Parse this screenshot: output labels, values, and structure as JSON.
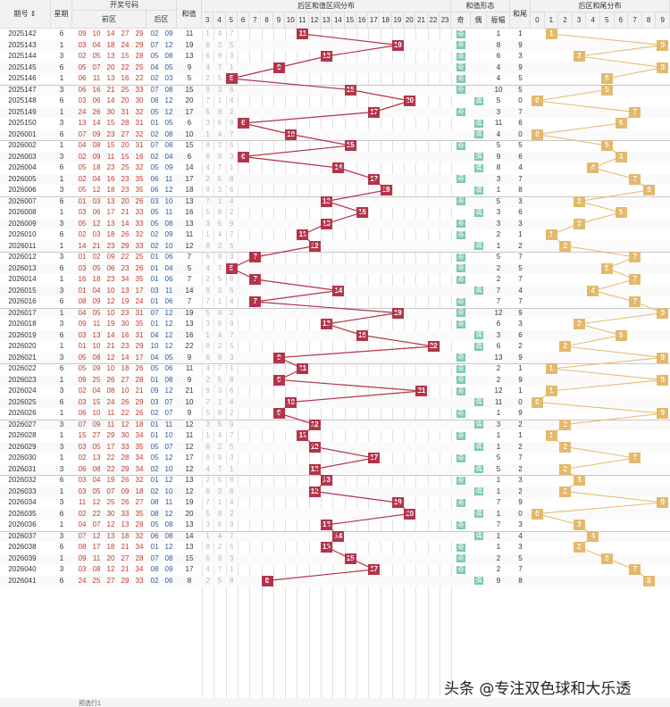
{
  "headers": {
    "period": "期号",
    "weekday": "星期",
    "draw": "开奖号码",
    "front": "前区",
    "back": "后区",
    "sum": "和值",
    "sum_dist": "后区和值区间分布",
    "sum_shape": "和值形态",
    "odd": "奇",
    "even": "偶",
    "amp": "振幅",
    "tail": "和尾",
    "tail_dist": "后区和尾分布",
    "sort_icon": "sort-arrows-icon"
  },
  "sum_cols": [
    "3",
    "4",
    "5",
    "6",
    "7",
    "8",
    "9",
    "10",
    "11",
    "12",
    "13",
    "14",
    "15",
    "16",
    "17",
    "18",
    "19",
    "20",
    "21",
    "22",
    "23"
  ],
  "tail_cols": [
    "0",
    "1",
    "2",
    "3",
    "4",
    "5",
    "6",
    "7",
    "8",
    "9"
  ],
  "rows": [
    {
      "p": "2025142",
      "w": "6",
      "f": [
        "09",
        "10",
        "14",
        "27",
        "29"
      ],
      "b": [
        "02",
        "09"
      ],
      "s": "11",
      "oe": "odd",
      "a": "1",
      "t": "1"
    },
    {
      "p": "2025143",
      "w": "1",
      "f": [
        "03",
        "04",
        "18",
        "24",
        "29"
      ],
      "b": [
        "07",
        "12"
      ],
      "s": "19",
      "oe": "odd",
      "a": "8",
      "t": "9"
    },
    {
      "p": "2025144",
      "w": "3",
      "f": [
        "02",
        "05",
        "13",
        "15",
        "28"
      ],
      "b": [
        "05",
        "08"
      ],
      "s": "13",
      "oe": "odd",
      "a": "6",
      "t": "3"
    },
    {
      "p": "2025145",
      "w": "6",
      "f": [
        "05",
        "07",
        "20",
        "22",
        "25"
      ],
      "b": [
        "04",
        "05"
      ],
      "s": "9",
      "oe": "odd",
      "a": "4",
      "t": "9"
    },
    {
      "p": "2025146",
      "w": "1",
      "f": [
        "06",
        "11",
        "13",
        "16",
        "22"
      ],
      "b": [
        "02",
        "03"
      ],
      "s": "5",
      "oe": "odd",
      "a": "4",
      "t": "5"
    },
    {
      "p": "2025147",
      "w": "3",
      "f": [
        "06",
        "16",
        "21",
        "25",
        "33"
      ],
      "b": [
        "07",
        "08"
      ],
      "s": "15",
      "oe": "odd",
      "a": "10",
      "t": "5"
    },
    {
      "p": "2025148",
      "w": "6",
      "f": [
        "03",
        "06",
        "14",
        "20",
        "30"
      ],
      "b": [
        "08",
        "12"
      ],
      "s": "20",
      "oe": "even",
      "a": "5",
      "t": "0"
    },
    {
      "p": "2025149",
      "w": "1",
      "f": [
        "24",
        "26",
        "30",
        "31",
        "32"
      ],
      "b": [
        "05",
        "12"
      ],
      "s": "17",
      "oe": "odd",
      "a": "3",
      "t": "7"
    },
    {
      "p": "2025150",
      "w": "3",
      "f": [
        "13",
        "14",
        "15",
        "28",
        "31"
      ],
      "b": [
        "01",
        "05"
      ],
      "s": "6",
      "oe": "even",
      "a": "11",
      "t": "6"
    },
    {
      "p": "2026001",
      "w": "6",
      "f": [
        "07",
        "09",
        "23",
        "27",
        "32"
      ],
      "b": [
        "02",
        "08"
      ],
      "s": "10",
      "oe": "even",
      "a": "4",
      "t": "0"
    },
    {
      "p": "2026002",
      "w": "1",
      "f": [
        "04",
        "08",
        "15",
        "20",
        "31"
      ],
      "b": [
        "07",
        "08"
      ],
      "s": "15",
      "oe": "odd",
      "a": "5",
      "t": "5"
    },
    {
      "p": "2026003",
      "w": "3",
      "f": [
        "02",
        "09",
        "11",
        "15",
        "16"
      ],
      "b": [
        "02",
        "04"
      ],
      "s": "6",
      "oe": "even",
      "a": "9",
      "t": "6"
    },
    {
      "p": "2026004",
      "w": "6",
      "f": [
        "05",
        "18",
        "23",
        "25",
        "32"
      ],
      "b": [
        "05",
        "09"
      ],
      "s": "14",
      "oe": "even",
      "a": "8",
      "t": "4"
    },
    {
      "p": "2026005",
      "w": "1",
      "f": [
        "02",
        "04",
        "16",
        "23",
        "35"
      ],
      "b": [
        "06",
        "11"
      ],
      "s": "17",
      "oe": "odd",
      "a": "3",
      "t": "7"
    },
    {
      "p": "2026006",
      "w": "3",
      "f": [
        "05",
        "12",
        "18",
        "23",
        "35"
      ],
      "b": [
        "06",
        "12"
      ],
      "s": "18",
      "oe": "even",
      "a": "1",
      "t": "8"
    },
    {
      "p": "2026007",
      "w": "6",
      "f": [
        "01",
        "03",
        "13",
        "20",
        "26"
      ],
      "b": [
        "03",
        "10"
      ],
      "s": "13",
      "oe": "odd",
      "a": "5",
      "t": "3"
    },
    {
      "p": "2026008",
      "w": "1",
      "f": [
        "03",
        "06",
        "17",
        "21",
        "33"
      ],
      "b": [
        "05",
        "11"
      ],
      "s": "16",
      "oe": "even",
      "a": "3",
      "t": "6"
    },
    {
      "p": "2026009",
      "w": "3",
      "f": [
        "05",
        "12",
        "13",
        "14",
        "33"
      ],
      "b": [
        "05",
        "08"
      ],
      "s": "13",
      "oe": "odd",
      "a": "3",
      "t": "3"
    },
    {
      "p": "2026010",
      "w": "6",
      "f": [
        "02",
        "03",
        "18",
        "26",
        "32"
      ],
      "b": [
        "02",
        "09"
      ],
      "s": "11",
      "oe": "odd",
      "a": "2",
      "t": "1"
    },
    {
      "p": "2026011",
      "w": "1",
      "f": [
        "14",
        "21",
        "23",
        "29",
        "33"
      ],
      "b": [
        "02",
        "10"
      ],
      "s": "12",
      "oe": "even",
      "a": "1",
      "t": "2"
    },
    {
      "p": "2026012",
      "w": "3",
      "f": [
        "01",
        "02",
        "09",
        "22",
        "25"
      ],
      "b": [
        "01",
        "06"
      ],
      "s": "7",
      "oe": "odd",
      "a": "5",
      "t": "7"
    },
    {
      "p": "2026013",
      "w": "6",
      "f": [
        "03",
        "05",
        "06",
        "23",
        "26"
      ],
      "b": [
        "01",
        "04"
      ],
      "s": "5",
      "oe": "odd",
      "a": "2",
      "t": "5"
    },
    {
      "p": "2026014",
      "w": "1",
      "f": [
        "16",
        "18",
        "23",
        "34",
        "35"
      ],
      "b": [
        "01",
        "06"
      ],
      "s": "7",
      "oe": "odd",
      "a": "2",
      "t": "7"
    },
    {
      "p": "2026015",
      "w": "3",
      "f": [
        "01",
        "04",
        "10",
        "13",
        "17"
      ],
      "b": [
        "03",
        "11"
      ],
      "s": "14",
      "oe": "even",
      "a": "7",
      "t": "4"
    },
    {
      "p": "2026016",
      "w": "6",
      "f": [
        "08",
        "09",
        "12",
        "19",
        "24"
      ],
      "b": [
        "01",
        "06"
      ],
      "s": "7",
      "oe": "odd",
      "a": "7",
      "t": "7"
    },
    {
      "p": "2026017",
      "w": "1",
      "f": [
        "04",
        "05",
        "10",
        "23",
        "31"
      ],
      "b": [
        "07",
        "12"
      ],
      "s": "19",
      "oe": "odd",
      "a": "12",
      "t": "9"
    },
    {
      "p": "2026018",
      "w": "3",
      "f": [
        "09",
        "11",
        "19",
        "30",
        "35"
      ],
      "b": [
        "01",
        "12"
      ],
      "s": "13",
      "oe": "odd",
      "a": "6",
      "t": "3"
    },
    {
      "p": "2026019",
      "w": "6",
      "f": [
        "03",
        "13",
        "14",
        "16",
        "31"
      ],
      "b": [
        "04",
        "12"
      ],
      "s": "16",
      "oe": "even",
      "a": "3",
      "t": "6"
    },
    {
      "p": "2026020",
      "w": "1",
      "f": [
        "01",
        "10",
        "21",
        "23",
        "29"
      ],
      "b": [
        "10",
        "12"
      ],
      "s": "22",
      "oe": "even",
      "a": "6",
      "t": "2"
    },
    {
      "p": "2026021",
      "w": "3",
      "f": [
        "05",
        "08",
        "12",
        "14",
        "17"
      ],
      "b": [
        "04",
        "05"
      ],
      "s": "9",
      "oe": "odd",
      "a": "13",
      "t": "9"
    },
    {
      "p": "2026022",
      "w": "6",
      "f": [
        "05",
        "09",
        "10",
        "18",
        "26"
      ],
      "b": [
        "05",
        "06"
      ],
      "s": "11",
      "oe": "odd",
      "a": "2",
      "t": "1"
    },
    {
      "p": "2026023",
      "w": "1",
      "f": [
        "09",
        "25",
        "26",
        "27",
        "28"
      ],
      "b": [
        "01",
        "08"
      ],
      "s": "9",
      "oe": "odd",
      "a": "2",
      "t": "9"
    },
    {
      "p": "2026024",
      "w": "3",
      "f": [
        "02",
        "04",
        "08",
        "10",
        "21"
      ],
      "b": [
        "09",
        "12"
      ],
      "s": "21",
      "oe": "odd",
      "a": "12",
      "t": "1"
    },
    {
      "p": "2026025",
      "w": "6",
      "f": [
        "03",
        "15",
        "24",
        "26",
        "29"
      ],
      "b": [
        "03",
        "07"
      ],
      "s": "10",
      "oe": "even",
      "a": "11",
      "t": "0"
    },
    {
      "p": "2026026",
      "w": "1",
      "f": [
        "06",
        "10",
        "11",
        "22",
        "26"
      ],
      "b": [
        "02",
        "07"
      ],
      "s": "9",
      "oe": "odd",
      "a": "1",
      "t": "9"
    },
    {
      "p": "2026027",
      "w": "3",
      "f": [
        "07",
        "09",
        "11",
        "12",
        "18"
      ],
      "b": [
        "01",
        "11"
      ],
      "s": "12",
      "oe": "even",
      "a": "3",
      "t": "2"
    },
    {
      "p": "2026028",
      "w": "1",
      "f": [
        "15",
        "27",
        "29",
        "30",
        "34"
      ],
      "b": [
        "01",
        "10"
      ],
      "s": "11",
      "oe": "odd",
      "a": "1",
      "t": "1"
    },
    {
      "p": "2026029",
      "w": "3",
      "f": [
        "03",
        "05",
        "17",
        "33",
        "35"
      ],
      "b": [
        "05",
        "07"
      ],
      "s": "12",
      "oe": "even",
      "a": "1",
      "t": "2"
    },
    {
      "p": "2026030",
      "w": "1",
      "f": [
        "02",
        "13",
        "22",
        "28",
        "34"
      ],
      "b": [
        "05",
        "12"
      ],
      "s": "17",
      "oe": "odd",
      "a": "5",
      "t": "7"
    },
    {
      "p": "2026031",
      "w": "3",
      "f": [
        "06",
        "08",
        "22",
        "29",
        "34"
      ],
      "b": [
        "02",
        "10"
      ],
      "s": "12",
      "oe": "even",
      "a": "5",
      "t": "2"
    },
    {
      "p": "2026032",
      "w": "6",
      "f": [
        "03",
        "04",
        "19",
        "26",
        "32"
      ],
      "b": [
        "01",
        "12"
      ],
      "s": "13",
      "oe": "odd",
      "a": "1",
      "t": "3"
    },
    {
      "p": "2026033",
      "w": "1",
      "f": [
        "03",
        "05",
        "07",
        "09",
        "18"
      ],
      "b": [
        "02",
        "10"
      ],
      "s": "12",
      "oe": "even",
      "a": "1",
      "t": "2"
    },
    {
      "p": "2026034",
      "w": "3",
      "f": [
        "11",
        "12",
        "25",
        "26",
        "27"
      ],
      "b": [
        "08",
        "11"
      ],
      "s": "19",
      "oe": "odd",
      "a": "7",
      "t": "9"
    },
    {
      "p": "2026035",
      "w": "6",
      "f": [
        "02",
        "22",
        "30",
        "33",
        "35"
      ],
      "b": [
        "08",
        "12"
      ],
      "s": "20",
      "oe": "even",
      "a": "1",
      "t": "0"
    },
    {
      "p": "2026036",
      "w": "1",
      "f": [
        "04",
        "07",
        "12",
        "13",
        "28"
      ],
      "b": [
        "05",
        "08"
      ],
      "s": "13",
      "oe": "odd",
      "a": "7",
      "t": "3"
    },
    {
      "p": "2026037",
      "w": "3",
      "f": [
        "07",
        "12",
        "13",
        "18",
        "32"
      ],
      "b": [
        "06",
        "08"
      ],
      "s": "14",
      "oe": "even",
      "a": "1",
      "t": "4"
    },
    {
      "p": "2026038",
      "w": "6",
      "f": [
        "08",
        "17",
        "18",
        "21",
        "34"
      ],
      "b": [
        "01",
        "12"
      ],
      "s": "13",
      "oe": "odd",
      "a": "1",
      "t": "3"
    },
    {
      "p": "2026039",
      "w": "1",
      "f": [
        "09",
        "11",
        "20",
        "27",
        "28"
      ],
      "b": [
        "07",
        "08"
      ],
      "s": "15",
      "oe": "odd",
      "a": "2",
      "t": "5"
    },
    {
      "p": "2026040",
      "w": "3",
      "f": [
        "03",
        "08",
        "12",
        "21",
        "34"
      ],
      "b": [
        "08",
        "09"
      ],
      "s": "17",
      "oe": "odd",
      "a": "2",
      "t": "7"
    },
    {
      "p": "2026041",
      "w": "6",
      "f": [
        "24",
        "25",
        "27",
        "29",
        "33"
      ],
      "b": [
        "02",
        "06"
      ],
      "s": "8",
      "oe": "even",
      "a": "9",
      "t": "8"
    }
  ],
  "footer": {
    "label": "预选行1"
  },
  "watermark": "头条 @专注双色球和大乐透",
  "colors": {
    "mark": "#b3344a",
    "tail_mark": "#e3b96c",
    "shape": "#7cc8b0"
  }
}
